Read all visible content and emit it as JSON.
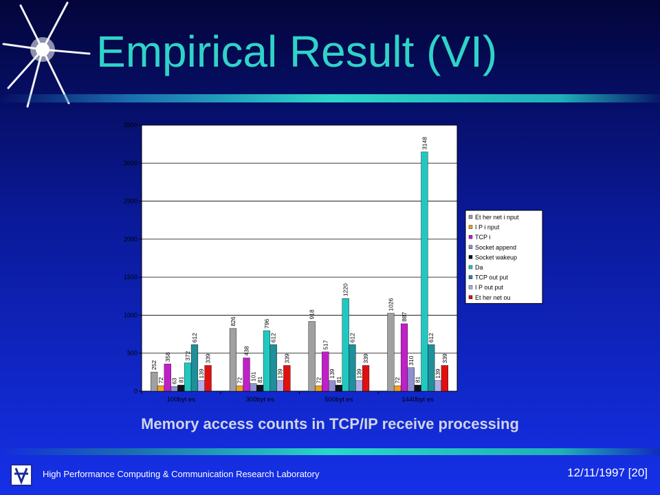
{
  "slide": {
    "title": "Empirical Result (VI)",
    "subtitle": "Memory access counts in TCP/IP receive processing",
    "footer_left": "High Performance Computing & Communication Research Laboratory",
    "footer_date": "12/11/1997",
    "footer_page": "[20]"
  },
  "colors": {
    "title": "#2fd3c8",
    "bg_top": "#03053a",
    "bg_bottom": "#1530e8"
  },
  "chart_data": {
    "type": "bar",
    "categories": [
      "100byt es",
      "300byt es",
      "500byt es",
      "1440byt es"
    ],
    "ylim": [
      0,
      3500
    ],
    "yticks": [
      "0",
      "500",
      "1000",
      "1500",
      "2000",
      "2500",
      "3000",
      "3500"
    ],
    "grid": true,
    "legend_position": "right",
    "series": [
      {
        "name": "Et her net   i nput",
        "color": "#a0a0a0",
        "values": [
          252,
          826,
          918,
          1026
        ]
      },
      {
        "name": "I P  i nput",
        "color": "#f0a020",
        "values": [
          72,
          72,
          72,
          72
        ]
      },
      {
        "name": "TCP  i",
        "color": "#c020c8",
        "values": [
          358,
          438,
          517,
          887
        ]
      },
      {
        "name": "Socket   append",
        "color": "#9090d0",
        "values": [
          63,
          101,
          139,
          310
        ]
      },
      {
        "name": "Socket   wakeup",
        "color": "#101018",
        "values": [
          81,
          81,
          81,
          81
        ]
      },
      {
        "name": "Da",
        "color": "#20c8c0",
        "values": [
          372,
          796,
          1220,
          3148
        ]
      },
      {
        "name": "TCP  out put",
        "color": "#1f8f9a",
        "values": [
          612,
          612,
          612,
          612
        ]
      },
      {
        "name": "I P  out put",
        "color": "#b0b0e8",
        "values": [
          139,
          139,
          139,
          139
        ]
      },
      {
        "name": "Et her net   ou",
        "color": "#e01010",
        "values": [
          339,
          339,
          339,
          339
        ]
      }
    ]
  }
}
